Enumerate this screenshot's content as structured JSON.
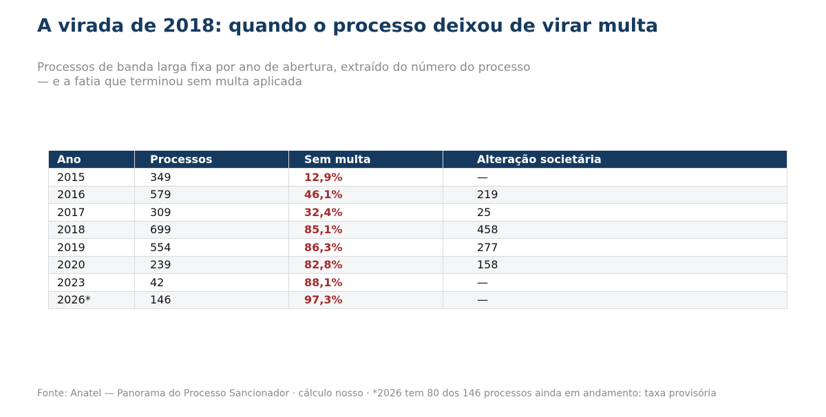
{
  "title": "A virada de 2018: quando o processo deixou de virar multa",
  "subtitle": "Processos de banda larga fixa por ano de abertura, extraído do número do processo — e a fatia que terminou sem multa aplicada",
  "source": "Fonte: Anatel — Panorama do Processo Sancionador · cálculo nosso · *2026 tem 80 dos 146 processos ainda em andamento: taxa provisória",
  "colors": {
    "header_bg": "#163a5f",
    "accent_red": "#a32c2c",
    "stripe": "#f4f5f7"
  },
  "chart_data": {
    "type": "table",
    "columns": [
      "Ano",
      "Processos",
      "Sem multa",
      "Alteração societária"
    ],
    "rows": [
      [
        "2015",
        "349",
        "12,9%",
        "—"
      ],
      [
        "2016",
        "579",
        "46,1%",
        "219"
      ],
      [
        "2017",
        "309",
        "32,4%",
        "25"
      ],
      [
        "2018",
        "699",
        "85,1%",
        "458"
      ],
      [
        "2019",
        "554",
        "86,3%",
        "277"
      ],
      [
        "2020",
        "239",
        "82,8%",
        "158"
      ],
      [
        "2023",
        "42",
        "88,1%",
        "—"
      ],
      [
        "2026*",
        "146",
        "97,3%",
        "—"
      ]
    ]
  }
}
